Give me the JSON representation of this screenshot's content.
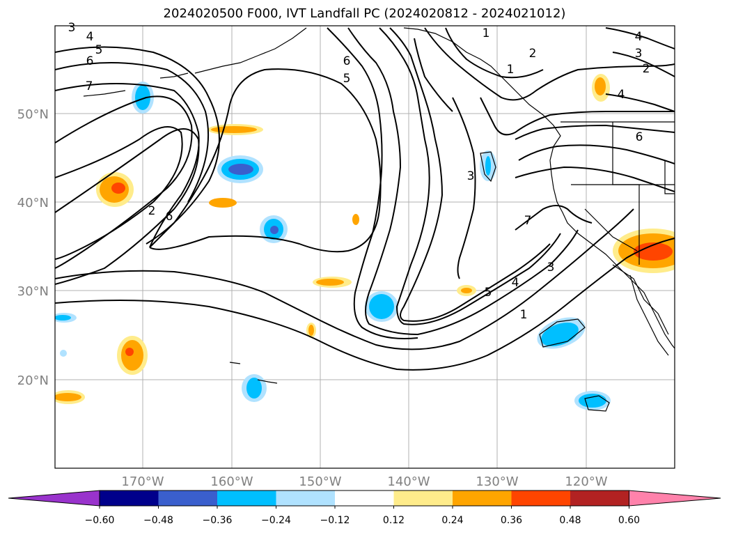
{
  "title": "2024020500 F000, IVT Landfall PC (2024020812 - 2024021012)",
  "lat_labels": [
    "50°N",
    "40°N",
    "30°N",
    "20°N"
  ],
  "lon_labels": [
    "170°W",
    "160°W",
    "150°W",
    "140°W",
    "130°W",
    "120°W"
  ],
  "colorbar": {
    "colors": [
      "#9933cc",
      "#00008b",
      "#3a5fcd",
      "#00bfff",
      "#b0e2ff",
      "#ffffff",
      "#ffec8b",
      "#ffa500",
      "#ff4500",
      "#b22222",
      "#ff82ab"
    ],
    "tick_labels": [
      "−0.60",
      "−0.48",
      "−0.36",
      "−0.24",
      "−0.12",
      "0.12",
      "0.24",
      "0.36",
      "0.48",
      "0.60"
    ]
  },
  "contour_labels": [
    "3",
    "4",
    "5",
    "6",
    "7",
    "6",
    "5",
    "1",
    "4",
    "3",
    "2",
    "4",
    "2",
    "1",
    "6",
    "3",
    "2",
    "6",
    "7",
    "3",
    "4",
    "5",
    "1"
  ],
  "colors": {
    "grid": "#b0b0b0",
    "axis_text": "#808080",
    "contour": "#000000"
  }
}
